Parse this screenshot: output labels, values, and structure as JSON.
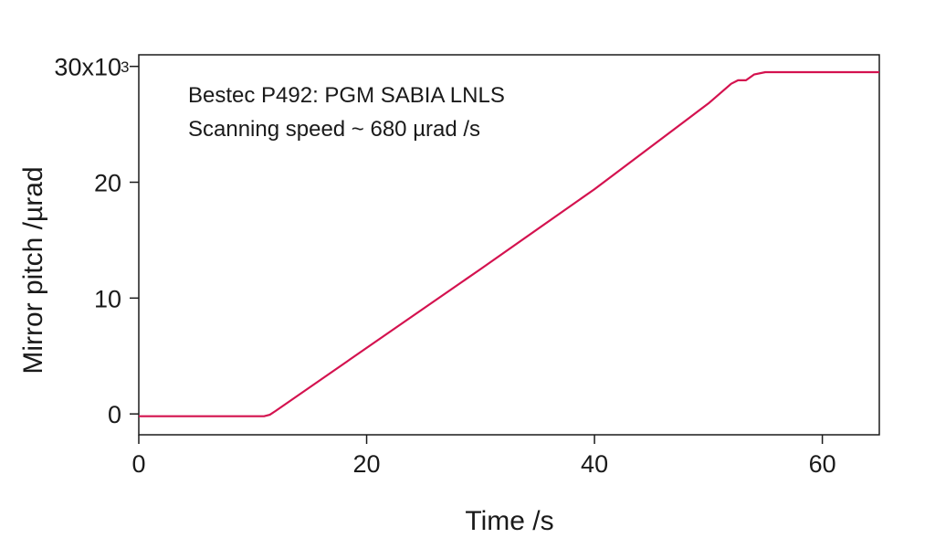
{
  "chart_data": {
    "type": "line",
    "xlabel": "Time /s",
    "ylabel": "Mirror pitch /µrad",
    "xlim": [
      0,
      65
    ],
    "ylim": [
      -1800,
      31000
    ],
    "x_ticks": [
      0,
      20,
      40,
      60
    ],
    "x_tick_labels": [
      "0",
      "20",
      "40",
      "60"
    ],
    "y_ticks": [
      0,
      10000,
      20000,
      30000
    ],
    "y_tick_labels": [
      "0",
      "10",
      "20",
      "30x10"
    ],
    "y_multiplier_exponent": "3",
    "annotations": [
      "Bestec P492: PGM SABIA LNLS",
      "Scanning speed ~ 680 µrad /s"
    ],
    "grid": false,
    "series_color": "#d4124f",
    "series": [
      {
        "x": [
          0,
          5,
          10,
          11,
          11.5,
          12,
          20,
          30,
          40,
          50,
          52,
          52.6,
          53.3,
          54,
          55,
          56,
          65
        ],
        "y": [
          -200,
          -200,
          -200,
          -200,
          -70,
          250,
          5700,
          12500,
          19400,
          26800,
          28500,
          28800,
          28800,
          29300,
          29500,
          29500,
          29500
        ]
      }
    ]
  }
}
